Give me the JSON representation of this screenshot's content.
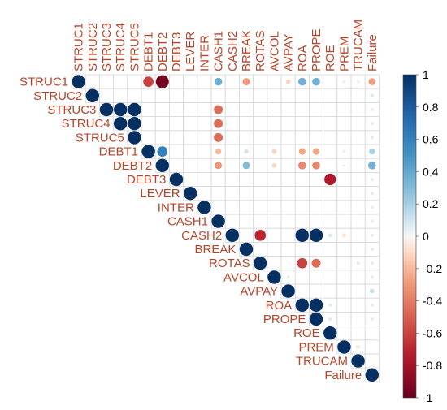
{
  "chart_data": {
    "type": "heatmap",
    "subtype": "correlation-upper-triangle",
    "variables": [
      "STRUC1",
      "STRUC2",
      "STRUC3",
      "STRUC4",
      "STRUC5",
      "DEBT1",
      "DEBT2",
      "DEBT3",
      "LEVER",
      "INTER",
      "CASH1",
      "CASH2",
      "BREAK",
      "ROTAS",
      "AVCOL",
      "AVPAY",
      "ROA",
      "PROPE",
      "ROE",
      "PREM",
      "TRUCAM",
      "Failure"
    ],
    "cells": [
      {
        "row": 0,
        "col": 0,
        "value": 1.0
      },
      {
        "row": 0,
        "col": 5,
        "value": -0.6
      },
      {
        "row": 0,
        "col": 6,
        "value": -0.95
      },
      {
        "row": 0,
        "col": 10,
        "value": 0.35
      },
      {
        "row": 0,
        "col": 12,
        "value": -0.3
      },
      {
        "row": 0,
        "col": 15,
        "value": -0.12
      },
      {
        "row": 0,
        "col": 16,
        "value": 0.35
      },
      {
        "row": 0,
        "col": 17,
        "value": 0.35
      },
      {
        "row": 0,
        "col": 19,
        "value": -0.05
      },
      {
        "row": 0,
        "col": 20,
        "value": -0.05
      },
      {
        "row": 0,
        "col": 21,
        "value": -0.28
      },
      {
        "row": 1,
        "col": 1,
        "value": 1.0
      },
      {
        "row": 1,
        "col": 21,
        "value": 0.08
      },
      {
        "row": 2,
        "col": 2,
        "value": 1.0
      },
      {
        "row": 2,
        "col": 3,
        "value": 1.0
      },
      {
        "row": 2,
        "col": 4,
        "value": 1.0
      },
      {
        "row": 2,
        "col": 10,
        "value": -0.45
      },
      {
        "row": 2,
        "col": 21,
        "value": 0.06
      },
      {
        "row": 3,
        "col": 3,
        "value": 1.0
      },
      {
        "row": 3,
        "col": 4,
        "value": 1.0
      },
      {
        "row": 3,
        "col": 10,
        "value": -0.45
      },
      {
        "row": 3,
        "col": 21,
        "value": 0.06
      },
      {
        "row": 4,
        "col": 4,
        "value": 1.0
      },
      {
        "row": 4,
        "col": 10,
        "value": -0.45
      },
      {
        "row": 4,
        "col": 21,
        "value": 0.06
      },
      {
        "row": 5,
        "col": 5,
        "value": 1.0
      },
      {
        "row": 5,
        "col": 6,
        "value": 0.6
      },
      {
        "row": 5,
        "col": 10,
        "value": -0.2
      },
      {
        "row": 5,
        "col": 12,
        "value": 0.1
      },
      {
        "row": 5,
        "col": 14,
        "value": -0.12
      },
      {
        "row": 5,
        "col": 16,
        "value": -0.25
      },
      {
        "row": 5,
        "col": 17,
        "value": -0.25
      },
      {
        "row": 5,
        "col": 19,
        "value": -0.05
      },
      {
        "row": 5,
        "col": 21,
        "value": 0.2
      },
      {
        "row": 6,
        "col": 6,
        "value": 1.0
      },
      {
        "row": 6,
        "col": 10,
        "value": -0.3
      },
      {
        "row": 6,
        "col": 12,
        "value": 0.3
      },
      {
        "row": 6,
        "col": 14,
        "value": -0.12
      },
      {
        "row": 6,
        "col": 16,
        "value": -0.35
      },
      {
        "row": 6,
        "col": 17,
        "value": -0.35
      },
      {
        "row": 6,
        "col": 19,
        "value": -0.05
      },
      {
        "row": 6,
        "col": 21,
        "value": 0.35
      },
      {
        "row": 7,
        "col": 7,
        "value": 1.0
      },
      {
        "row": 7,
        "col": 18,
        "value": -0.75
      },
      {
        "row": 7,
        "col": 21,
        "value": 0.06
      },
      {
        "row": 8,
        "col": 8,
        "value": 1.0
      },
      {
        "row": 8,
        "col": 21,
        "value": 0.06
      },
      {
        "row": 9,
        "col": 9,
        "value": 1.0
      },
      {
        "row": 9,
        "col": 21,
        "value": 0.06
      },
      {
        "row": 10,
        "col": 10,
        "value": 1.0
      },
      {
        "row": 10,
        "col": 21,
        "value": 0.06
      },
      {
        "row": 11,
        "col": 11,
        "value": 1.0
      },
      {
        "row": 11,
        "col": 13,
        "value": -0.7
      },
      {
        "row": 11,
        "col": 16,
        "value": 1.0
      },
      {
        "row": 11,
        "col": 17,
        "value": 1.0
      },
      {
        "row": 11,
        "col": 18,
        "value": 0.08
      },
      {
        "row": 11,
        "col": 19,
        "value": -0.08
      },
      {
        "row": 11,
        "col": 21,
        "value": 0.06
      },
      {
        "row": 12,
        "col": 12,
        "value": 1.0
      },
      {
        "row": 12,
        "col": 21,
        "value": 0.06
      },
      {
        "row": 13,
        "col": 13,
        "value": 1.0
      },
      {
        "row": 13,
        "col": 16,
        "value": -0.6
      },
      {
        "row": 13,
        "col": 17,
        "value": -0.45
      },
      {
        "row": 13,
        "col": 20,
        "value": 0.06
      },
      {
        "row": 13,
        "col": 21,
        "value": 0.06
      },
      {
        "row": 14,
        "col": 14,
        "value": 1.0
      },
      {
        "row": 14,
        "col": 15,
        "value": 0.06
      },
      {
        "row": 14,
        "col": 21,
        "value": 0.06
      },
      {
        "row": 15,
        "col": 15,
        "value": 1.0
      },
      {
        "row": 15,
        "col": 21,
        "value": 0.12
      },
      {
        "row": 16,
        "col": 16,
        "value": 1.0
      },
      {
        "row": 16,
        "col": 17,
        "value": 1.0
      },
      {
        "row": 16,
        "col": 18,
        "value": 0.06
      },
      {
        "row": 16,
        "col": 21,
        "value": 0.06
      },
      {
        "row": 17,
        "col": 17,
        "value": 1.0
      },
      {
        "row": 17,
        "col": 18,
        "value": 0.06
      },
      {
        "row": 17,
        "col": 21,
        "value": 0.06
      },
      {
        "row": 18,
        "col": 18,
        "value": 1.0
      },
      {
        "row": 19,
        "col": 19,
        "value": 1.0
      },
      {
        "row": 19,
        "col": 20,
        "value": -0.08
      },
      {
        "row": 20,
        "col": 20,
        "value": 1.0
      },
      {
        "row": 21,
        "col": 21,
        "value": 1.0
      }
    ],
    "colorbar": {
      "range": [
        -1,
        1
      ],
      "ticks": [
        "1",
        "0.8",
        "0.6",
        "0.4",
        "0.2",
        "0",
        "-0.2",
        "-0.4",
        "-0.6",
        "-0.8",
        "-1"
      ],
      "colors": {
        "negative_end": "#67001f",
        "mid": "#f7f7f7",
        "positive_end": "#053061"
      }
    },
    "grid": true,
    "legend_position": "right"
  }
}
